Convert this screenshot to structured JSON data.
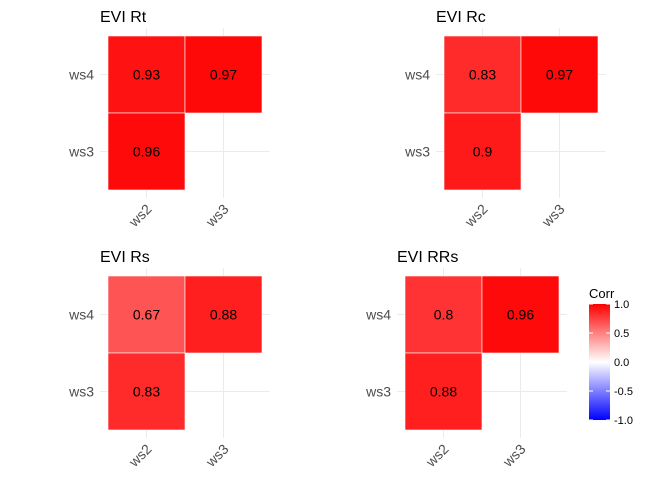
{
  "chart_data": [
    {
      "type": "heatmap",
      "title": "EVI Rt",
      "x_categories": [
        "ws2",
        "ws3"
      ],
      "y_categories": [
        "ws3",
        "ws4"
      ],
      "cells": [
        {
          "x": "ws2",
          "y": "ws4",
          "value": 0.93
        },
        {
          "x": "ws3",
          "y": "ws4",
          "value": 0.97
        },
        {
          "x": "ws2",
          "y": "ws3",
          "value": 0.96
        }
      ]
    },
    {
      "type": "heatmap",
      "title": "EVI Rc",
      "x_categories": [
        "ws2",
        "ws3"
      ],
      "y_categories": [
        "ws3",
        "ws4"
      ],
      "cells": [
        {
          "x": "ws2",
          "y": "ws4",
          "value": 0.83
        },
        {
          "x": "ws3",
          "y": "ws4",
          "value": 0.97
        },
        {
          "x": "ws2",
          "y": "ws3",
          "value": 0.9
        }
      ]
    },
    {
      "type": "heatmap",
      "title": "EVI Rs",
      "x_categories": [
        "ws2",
        "ws3"
      ],
      "y_categories": [
        "ws3",
        "ws4"
      ],
      "cells": [
        {
          "x": "ws2",
          "y": "ws4",
          "value": 0.67
        },
        {
          "x": "ws3",
          "y": "ws4",
          "value": 0.88
        },
        {
          "x": "ws2",
          "y": "ws3",
          "value": 0.83
        }
      ]
    },
    {
      "type": "heatmap",
      "title": "EVI RRs",
      "x_categories": [
        "ws2",
        "ws3"
      ],
      "y_categories": [
        "ws3",
        "ws4"
      ],
      "cells": [
        {
          "x": "ws2",
          "y": "ws4",
          "value": 0.8
        },
        {
          "x": "ws3",
          "y": "ws4",
          "value": 0.96
        },
        {
          "x": "ws2",
          "y": "ws3",
          "value": 0.88
        }
      ]
    }
  ],
  "legend": {
    "title": "Corr",
    "ticks": [
      1.0,
      0.5,
      0.0,
      -0.5,
      -1.0
    ],
    "tick_labels": [
      "1.0",
      "0.5",
      "0.0",
      "-0.5",
      "-1.0"
    ],
    "range": [
      -1,
      1
    ],
    "colors": {
      "low": "#0000ff",
      "mid": "#ffffff",
      "high": "#ff0000"
    }
  },
  "cell_label_labels": {
    "p0": [
      "0.93",
      "0.97",
      "0.96"
    ],
    "p1": [
      "0.83",
      "0.97",
      "0.9"
    ],
    "p2": [
      "0.67",
      "0.88",
      "0.83"
    ],
    "p3": [
      "0.8",
      "0.96",
      "0.88"
    ]
  }
}
